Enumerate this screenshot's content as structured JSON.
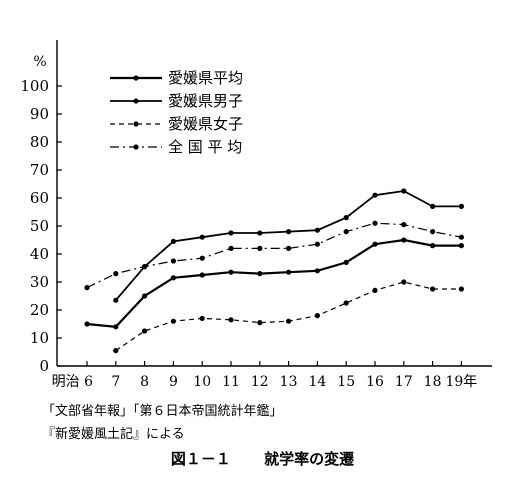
{
  "chart_data": {
    "type": "line",
    "unit_label": "%",
    "ylim": [
      0,
      100
    ],
    "yticks": [
      "0",
      "10",
      "20",
      "30",
      "40",
      "50",
      "60",
      "70",
      "80",
      "90",
      "100"
    ],
    "categories": [
      "明治 6",
      "7",
      "8",
      "9",
      "10",
      "11",
      "12",
      "13",
      "14",
      "15",
      "16",
      "17",
      "18",
      "19年"
    ],
    "grid": false,
    "legend_position": "top-left",
    "series": [
      {
        "name": "愛媛県平均",
        "style": "solid-bold",
        "values": [
          15,
          14,
          25,
          31.5,
          32.5,
          33.5,
          33,
          33.5,
          34,
          37,
          43.5,
          45,
          43,
          43
        ]
      },
      {
        "name": "愛媛県男子",
        "style": "solid",
        "values": [
          null,
          23.5,
          35.5,
          44.5,
          46,
          47.5,
          47.5,
          48,
          48.5,
          53,
          61,
          62.5,
          57,
          57
        ]
      },
      {
        "name": "愛媛県女子",
        "style": "dashed",
        "values": [
          null,
          5.5,
          12.5,
          16,
          17,
          16.5,
          15.5,
          16,
          18,
          22.5,
          27,
          30,
          27.5,
          27.5
        ]
      },
      {
        "name": "全 国 平 均",
        "style": "dash-dot",
        "values": [
          28,
          33,
          35.5,
          37.5,
          38.5,
          42,
          42,
          42,
          43.5,
          48,
          51,
          50.5,
          48,
          46
        ]
      }
    ]
  },
  "source_line1": "「文部省年報」「第６日本帝国統計年鑑」",
  "source_line2": "『新愛媛風土記』による",
  "figure_number": "図１－１",
  "figure_title": "就学率の変遷"
}
